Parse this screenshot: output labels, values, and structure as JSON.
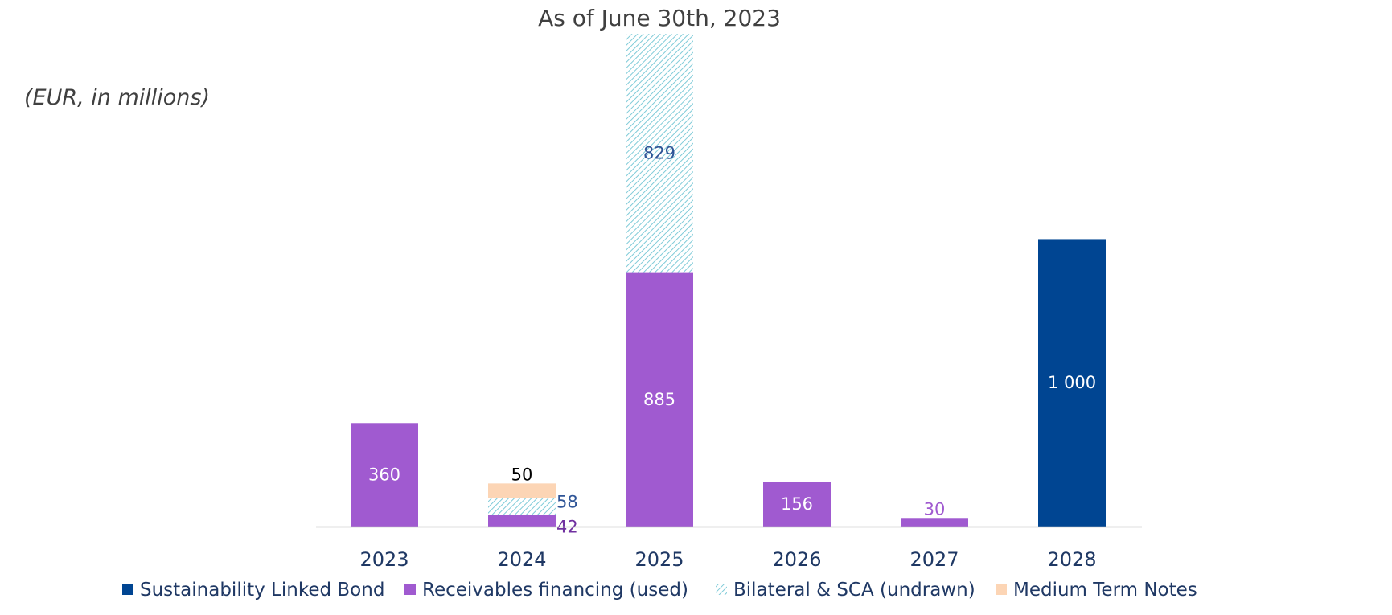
{
  "chart_data": {
    "type": "bar",
    "stacked": true,
    "title": "As of June 30th, 2023",
    "unit_label": "(EUR, in millions)",
    "categories": [
      "2023",
      "2024",
      "2025",
      "2026",
      "2027",
      "2028"
    ],
    "series": [
      {
        "name": "Sustainability Linked Bond",
        "color": "#004592",
        "pattern": "solid",
        "values": [
          0,
          0,
          0,
          0,
          0,
          1000
        ],
        "labels": [
          "",
          "",
          "",
          "",
          "",
          "1 000"
        ]
      },
      {
        "name": "Receivables financing (used)",
        "color": "#A05AD0",
        "pattern": "solid",
        "values": [
          360,
          42,
          885,
          156,
          30,
          0
        ],
        "labels": [
          "360",
          "42",
          "885",
          "156",
          "30",
          ""
        ]
      },
      {
        "name": "Bilateral & SCA (undrawn)",
        "color": "#7FCBD8",
        "pattern": "hatch",
        "values": [
          0,
          58,
          829,
          0,
          0,
          0
        ],
        "labels": [
          "",
          "58",
          "829",
          "",
          "",
          ""
        ]
      },
      {
        "name": "Medium Term Notes",
        "color": "#FCD5B5",
        "pattern": "solid",
        "values": [
          0,
          50,
          0,
          0,
          0,
          0
        ],
        "labels": [
          "",
          "50",
          "",
          "",
          "",
          ""
        ]
      }
    ],
    "ylim": [
      0,
      1720
    ],
    "grid": false,
    "legend_position": "bottom",
    "axis_color": "#BFBFBF",
    "tick_label_color": "#1F3864"
  }
}
